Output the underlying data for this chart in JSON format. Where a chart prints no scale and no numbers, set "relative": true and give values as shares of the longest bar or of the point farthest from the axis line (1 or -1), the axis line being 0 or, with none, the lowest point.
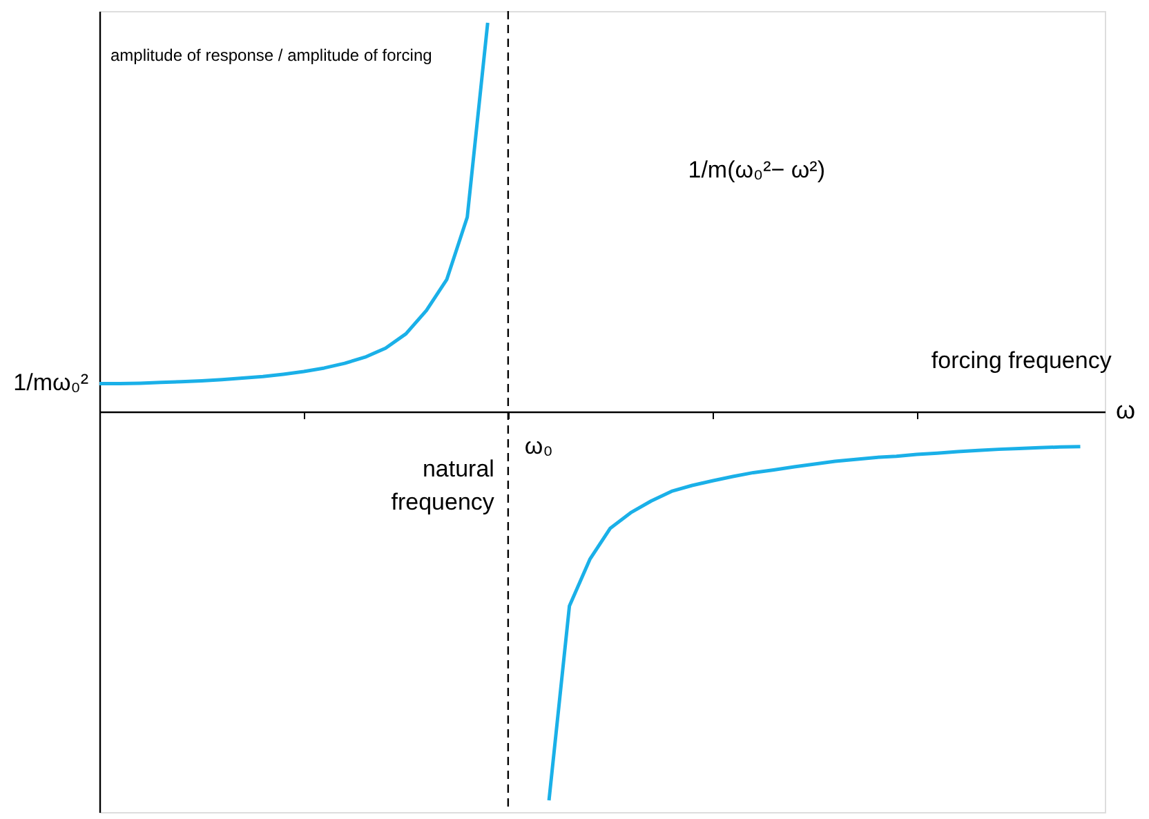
{
  "chart_data": {
    "type": "line",
    "relative": true,
    "ylabel": "amplitude of response / amplitude of forcing",
    "xlabel": "ω",
    "categories": [
      null,
      null,
      null,
      null,
      null,
      null,
      null,
      null,
      null,
      null,
      null,
      null,
      null,
      null,
      null,
      null,
      null,
      null,
      null,
      null,
      null,
      null,
      null,
      null,
      null,
      null,
      null,
      null,
      null,
      null,
      null,
      null,
      null,
      null,
      null,
      null,
      null,
      null,
      null,
      null,
      null,
      null,
      null,
      null,
      null,
      null,
      null,
      null,
      null
    ],
    "series": [
      {
        "color": "#1ab0e8",
        "values": [
          0.072,
          0.072,
          0.073,
          0.075,
          0.077,
          0.079,
          0.082,
          0.086,
          0.09,
          0.096,
          0.103,
          0.112,
          0.124,
          0.14,
          0.163,
          0.2,
          0.26,
          0.34,
          0.5,
          1.0,
          null,
          null,
          null,
          null,
          null,
          null,
          null,
          null,
          null,
          null,
          null,
          null,
          null,
          null,
          null,
          null,
          null,
          null,
          null,
          null,
          null,
          null,
          null,
          null,
          null,
          null,
          null,
          null,
          null
        ]
      },
      {
        "color": "#1ab0e8",
        "values": [
          null,
          null,
          null,
          null,
          null,
          null,
          null,
          null,
          null,
          null,
          null,
          null,
          null,
          null,
          null,
          null,
          null,
          null,
          null,
          null,
          null,
          null,
          -1.0,
          -0.5,
          -0.38,
          -0.3,
          -0.26,
          -0.23,
          -0.205,
          -0.19,
          -0.178,
          -0.167,
          -0.157,
          -0.15,
          -0.142,
          -0.135,
          -0.128,
          -0.123,
          -0.118,
          -0.115,
          -0.11,
          -0.107,
          -0.103,
          -0.1,
          -0.097,
          -0.095,
          -0.093,
          -0.091,
          -0.09
        ]
      }
    ],
    "annotations": [
      "1/mω₀²",
      "ω₀",
      "1/m(ω₀²− ω²)",
      "forcing frequency",
      "natural frequency"
    ],
    "line_style": "solid"
  }
}
